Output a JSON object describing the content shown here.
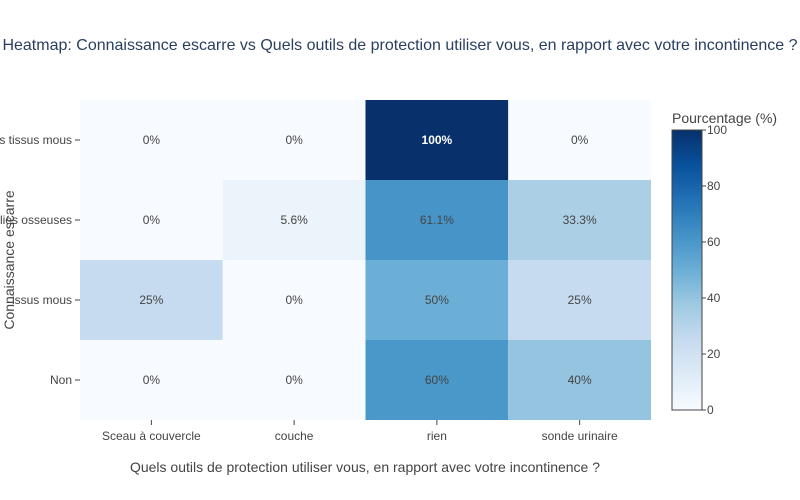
{
  "chart_data": {
    "type": "heatmap",
    "title": "Heatmap: Connaissance escarre vs Quels outils de protection utiliser vous, en rapport avec votre incontinence ?",
    "xlabel": "Quels outils de protection utiliser vous, en rapport avec votre incontinence ?",
    "ylabel": "Connaissance escarre",
    "x_categories": [
      "Sceau à couvercle",
      "couche",
      "rien",
      "sonde urinaire"
    ],
    "y_categories": [
      "Non",
      "Oui, les tissus mous",
      "Oui, les saillies osseuses",
      "Oui, les tissus mous"
    ],
    "y_tick_labels_visible": [
      "Non",
      "issus mous",
      "illies osseuses",
      "s tissus mous"
    ],
    "values": [
      [
        0,
        0,
        60,
        40
      ],
      [
        25,
        0,
        50,
        25
      ],
      [
        0,
        5.6,
        61.1,
        33.3
      ],
      [
        0,
        0,
        100,
        0
      ]
    ],
    "cell_labels": [
      [
        "0%",
        "0%",
        "60%",
        "40%"
      ],
      [
        "25%",
        "0%",
        "50%",
        "25%"
      ],
      [
        "0%",
        "5.6%",
        "61.1%",
        "33.3%"
      ],
      [
        "0%",
        "0%",
        "100%",
        "0%"
      ]
    ],
    "colorbar": {
      "title": "Pourcentage (%)",
      "range": [
        0,
        100
      ],
      "ticks": [
        0,
        20,
        40,
        60,
        80,
        100
      ],
      "colorscale": "Blues"
    },
    "colors": {
      "scale": [
        "#f7fbff",
        "#deebf7",
        "#c6dbef",
        "#9ecae1",
        "#6baed6",
        "#4292c6",
        "#2171b5",
        "#08519c",
        "#08306b"
      ]
    }
  }
}
